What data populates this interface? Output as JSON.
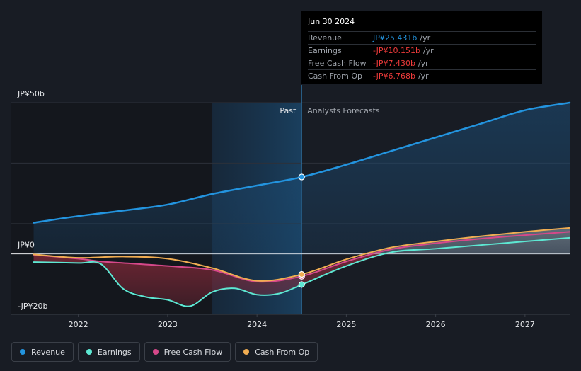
{
  "chart_data": {
    "type": "line",
    "title": "",
    "y_unit": "JP¥",
    "ylim": [
      -20,
      50
    ],
    "y_tick_labels": [
      "JP¥50b",
      "JP¥0",
      "-JP¥20b"
    ],
    "y_tick_values": [
      50,
      0,
      -20
    ],
    "x_tick_labels": [
      "2022",
      "2023",
      "2024",
      "2025",
      "2026",
      "2027"
    ],
    "x_tick_values": [
      2022,
      2023,
      2024,
      2025,
      2026,
      2027
    ],
    "xlim": [
      2021.25,
      2027.5
    ],
    "forecast_start": 2023.5,
    "divider_x": 2024.5,
    "regions": {
      "past": "Past",
      "forecast": "Analysts Forecasts"
    },
    "series": [
      {
        "name": "Revenue",
        "color": "#2394df",
        "marker_value": 25.431,
        "points": [
          [
            2021.5,
            10.3
          ],
          [
            2022.0,
            12.5
          ],
          [
            2022.5,
            14.3
          ],
          [
            2023.0,
            16.3
          ],
          [
            2023.5,
            19.8
          ],
          [
            2024.0,
            22.6
          ],
          [
            2024.5,
            25.4
          ],
          [
            2025.0,
            29.5
          ],
          [
            2025.5,
            34.0
          ],
          [
            2026.0,
            38.5
          ],
          [
            2026.5,
            43.0
          ],
          [
            2027.0,
            47.5
          ],
          [
            2027.5,
            50.0
          ]
        ]
      },
      {
        "name": "Earnings",
        "color": "#5de8d3",
        "marker_value": -10.151,
        "points": [
          [
            2021.5,
            -2.7
          ],
          [
            2022.0,
            -3.0
          ],
          [
            2022.25,
            -3.3
          ],
          [
            2022.5,
            -11.5
          ],
          [
            2022.75,
            -14.2
          ],
          [
            2023.0,
            -15.2
          ],
          [
            2023.25,
            -17.3
          ],
          [
            2023.5,
            -12.6
          ],
          [
            2023.75,
            -11.4
          ],
          [
            2024.0,
            -13.5
          ],
          [
            2024.25,
            -13.1
          ],
          [
            2024.5,
            -10.2
          ],
          [
            2025.0,
            -4.0
          ],
          [
            2025.5,
            0.5
          ],
          [
            2026.0,
            1.7
          ],
          [
            2026.5,
            2.9
          ],
          [
            2027.0,
            4.1
          ],
          [
            2027.5,
            5.3
          ]
        ]
      },
      {
        "name": "Free Cash Flow",
        "color": "#d6488a",
        "marker_value": -7.43,
        "points": [
          [
            2021.5,
            -0.3
          ],
          [
            2022.0,
            -1.6
          ],
          [
            2022.25,
            -2.5
          ],
          [
            2022.5,
            -3.0
          ],
          [
            2023.0,
            -4.0
          ],
          [
            2023.5,
            -5.3
          ],
          [
            2024.0,
            -9.2
          ],
          [
            2024.5,
            -7.4
          ],
          [
            2025.0,
            -2.5
          ],
          [
            2025.5,
            1.5
          ],
          [
            2026.0,
            3.5
          ],
          [
            2026.5,
            5.0
          ],
          [
            2027.0,
            6.2
          ],
          [
            2027.5,
            7.3
          ]
        ]
      },
      {
        "name": "Cash From Op",
        "color": "#f0ad52",
        "marker_value": -6.768,
        "points": [
          [
            2021.5,
            -0.2
          ],
          [
            2022.0,
            -1.3
          ],
          [
            2022.5,
            -0.9
          ],
          [
            2023.0,
            -1.6
          ],
          [
            2023.5,
            -4.7
          ],
          [
            2024.0,
            -8.9
          ],
          [
            2024.5,
            -6.8
          ],
          [
            2025.0,
            -1.8
          ],
          [
            2025.5,
            2.1
          ],
          [
            2026.0,
            4.1
          ],
          [
            2026.5,
            5.8
          ],
          [
            2027.0,
            7.3
          ],
          [
            2027.5,
            8.6
          ]
        ]
      }
    ]
  },
  "tooltip": {
    "date": "Jun 30 2024",
    "rows": [
      {
        "label": "Revenue",
        "value": "JP¥25.431b",
        "unit": "/yr",
        "color": "#2394df"
      },
      {
        "label": "Earnings",
        "value": "-JP¥10.151b",
        "unit": "/yr",
        "color": "#f03b3b"
      },
      {
        "label": "Free Cash Flow",
        "value": "-JP¥7.430b",
        "unit": "/yr",
        "color": "#f03b3b"
      },
      {
        "label": "Cash From Op",
        "value": "-JP¥6.768b",
        "unit": "/yr",
        "color": "#f03b3b"
      }
    ]
  },
  "legend": [
    {
      "label": "Revenue",
      "color": "#2394df"
    },
    {
      "label": "Earnings",
      "color": "#5de8d3"
    },
    {
      "label": "Free Cash Flow",
      "color": "#d6488a"
    },
    {
      "label": "Cash From Op",
      "color": "#f0ad52"
    }
  ]
}
